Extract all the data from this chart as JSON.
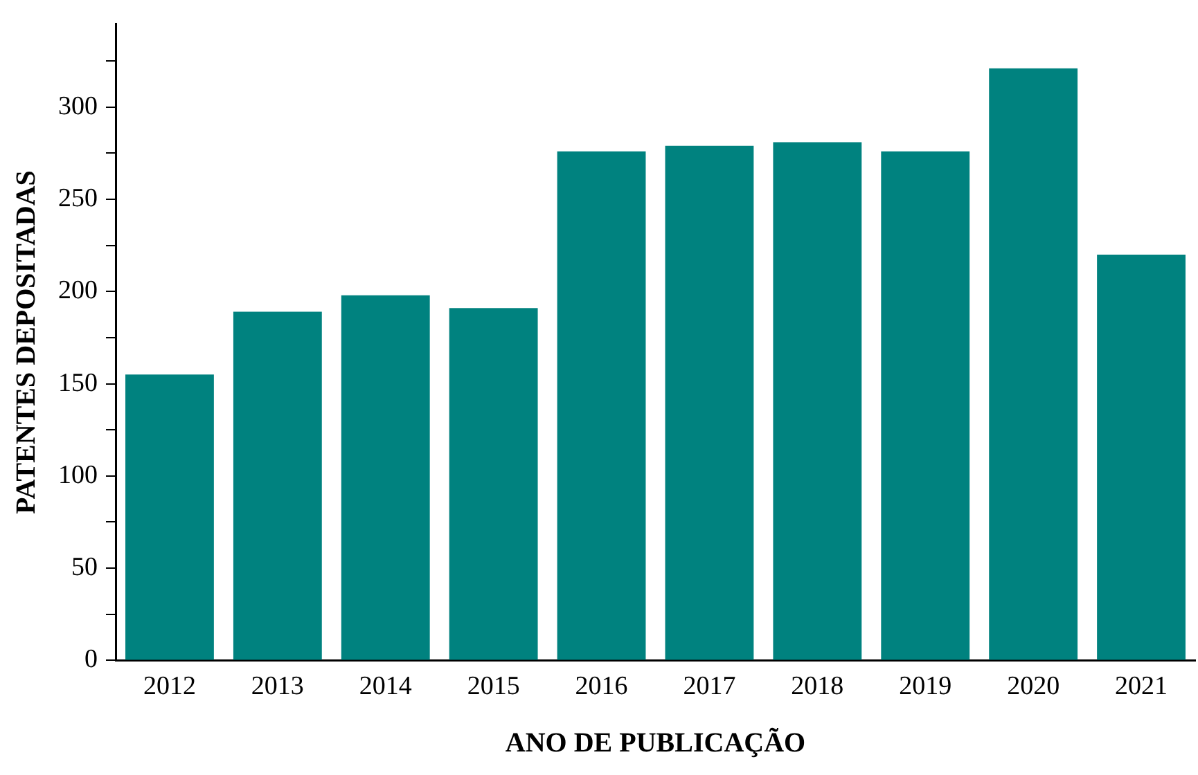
{
  "chart_data": {
    "type": "bar",
    "xlabel": "ANO DE PUBLICAÇÃO",
    "ylabel": "PATENTES DEPOSITADAS",
    "categories": [
      "2012",
      "2013",
      "2014",
      "2015",
      "2016",
      "2017",
      "2018",
      "2019",
      "2020",
      "2021"
    ],
    "values": [
      155,
      189,
      198,
      191,
      276,
      279,
      281,
      276,
      321,
      220
    ],
    "color": "#00827f",
    "ylim": [
      0,
      345
    ],
    "yticks": [
      0,
      {
        "value": 25,
        "label": null
      },
      50,
      {
        "value": 75,
        "label": null
      },
      100,
      {
        "value": 125,
        "label": null
      },
      150,
      {
        "value": 175,
        "label": null
      },
      200,
      {
        "value": 225,
        "label": null
      },
      250,
      {
        "value": 275,
        "label": null
      },
      300,
      {
        "value": 325,
        "label": null
      }
    ],
    "grid": false,
    "legend": false
  }
}
